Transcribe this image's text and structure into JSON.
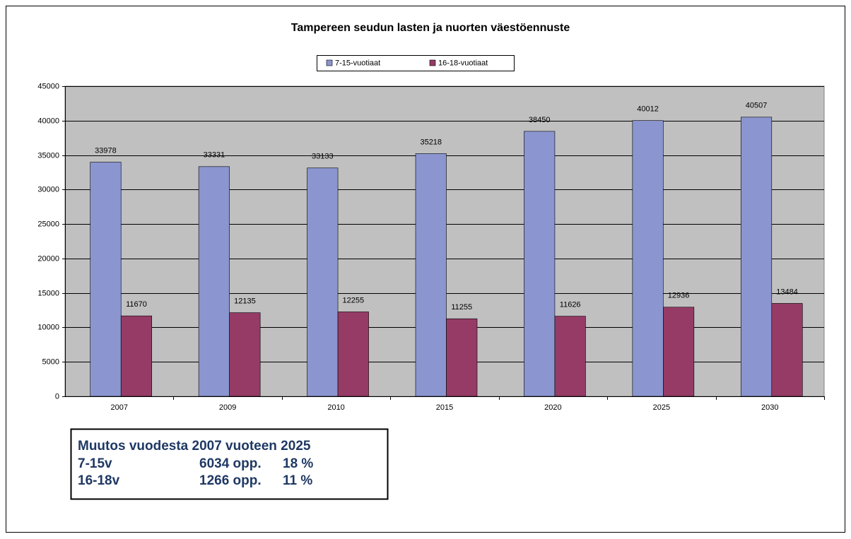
{
  "chart_data": {
    "type": "bar",
    "title": "Tampereen seudun lasten ja nuorten väestöennuste",
    "categories": [
      "2007",
      "2009",
      "2010",
      "2015",
      "2020",
      "2025",
      "2030"
    ],
    "series": [
      {
        "name": "7-15-vuotiaat",
        "color": "#8b95cf",
        "values": [
          33978,
          33331,
          33133,
          35218,
          38450,
          40012,
          40507
        ]
      },
      {
        "name": "16-18-vuotiaat",
        "color": "#953b66",
        "values": [
          11670,
          12135,
          12255,
          11255,
          11626,
          12936,
          13484
        ]
      }
    ],
    "ylim": [
      0,
      45000
    ],
    "yticks": [
      0,
      5000,
      10000,
      15000,
      20000,
      25000,
      30000,
      35000,
      40000,
      45000
    ],
    "grid": true,
    "legend": "top",
    "plot_background": "#c0c0c0",
    "annotation": {
      "heading": "Muutos vuodesta 2007 vuoteen 2025",
      "rows": [
        [
          "7-15v",
          "6034 opp.",
          "18 %"
        ],
        [
          "16-18v",
          "1266 opp.",
          "11 %"
        ]
      ]
    }
  }
}
